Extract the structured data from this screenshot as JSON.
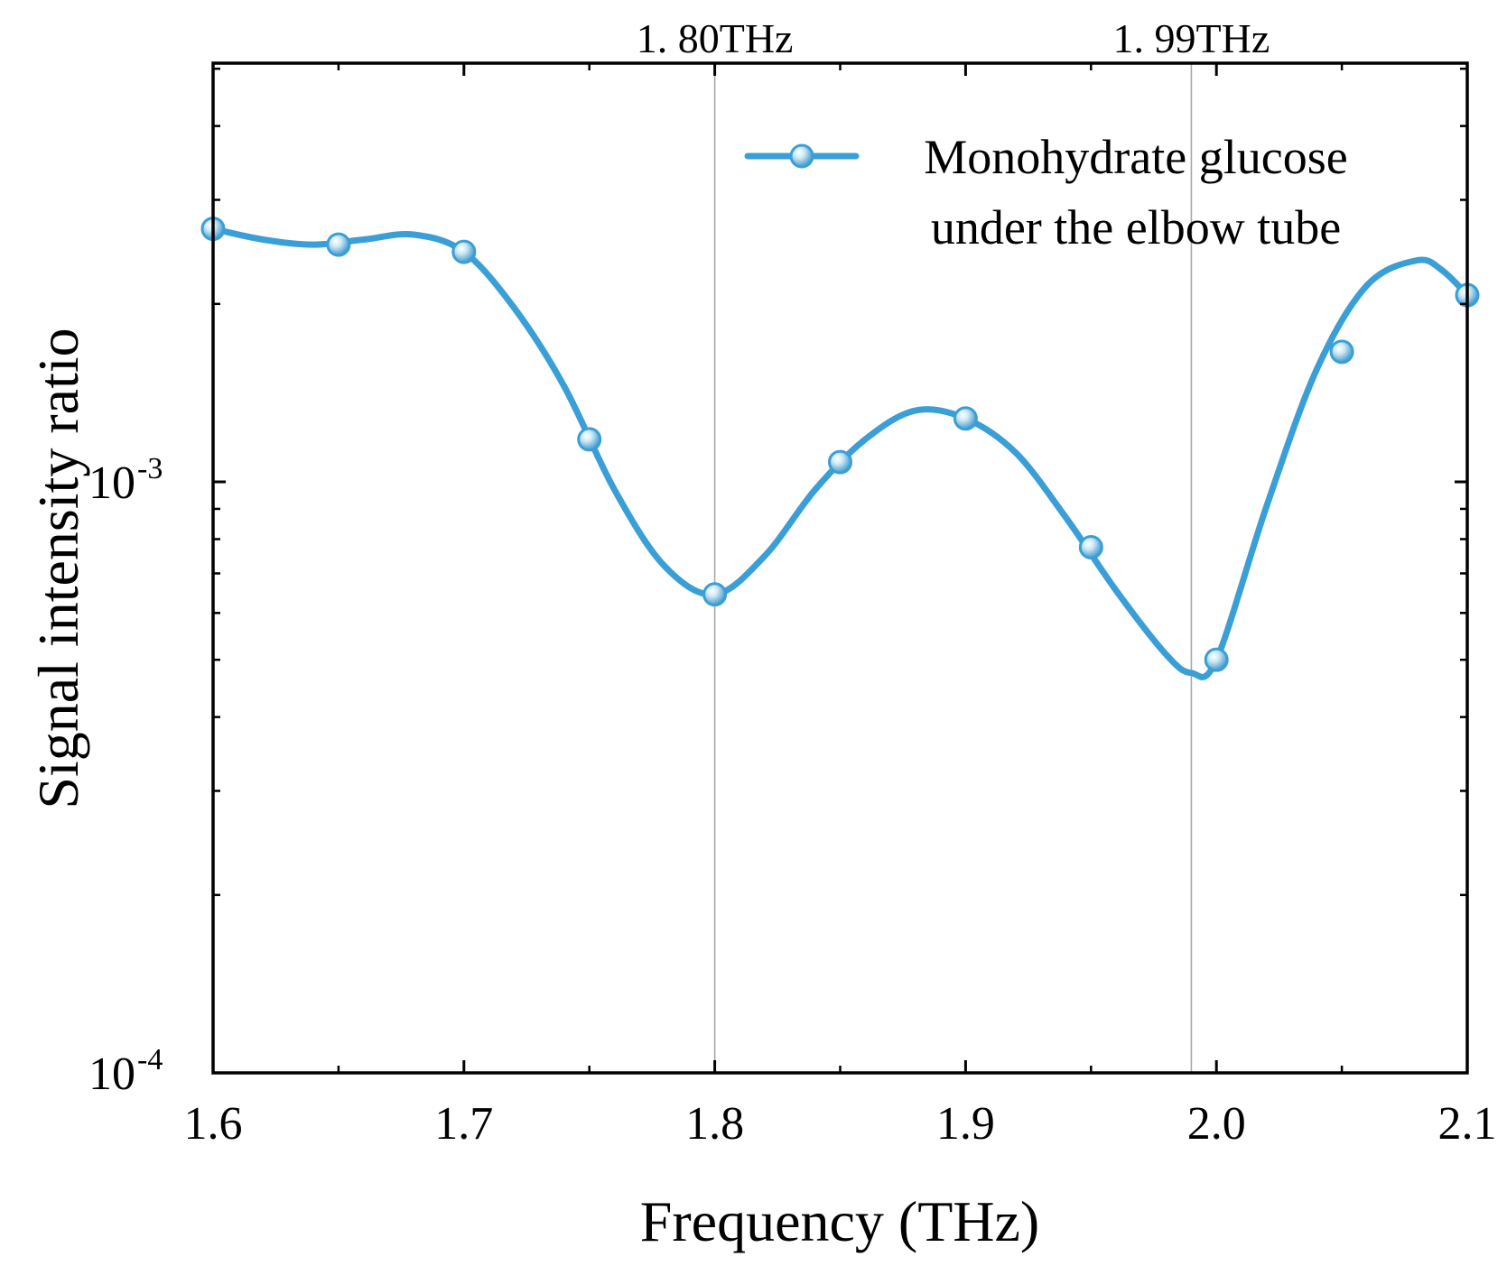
{
  "chart_data": {
    "type": "line",
    "title": "",
    "xlabel": "Frequency (THz)",
    "ylabel": "Signal intensity ratio",
    "xlim": [
      1.6,
      2.1
    ],
    "ylim": [
      0.0001,
      0.005
    ],
    "yscale": "log",
    "grid": false,
    "x_ticks": [
      1.6,
      1.7,
      1.8,
      1.9,
      2.0,
      2.1
    ],
    "x_tick_labels": [
      "1.6",
      "1.7",
      "1.8",
      "1.9",
      "2.0",
      "2.1"
    ],
    "y_ticks": [
      {
        "value": 0.0001,
        "base": "10",
        "exp": "-4"
      },
      {
        "value": 0.001,
        "base": "10",
        "exp": "-3"
      }
    ],
    "legend_position": "top-right",
    "series": [
      {
        "name": "Monohydrate glucose under the elbow tube",
        "legend_lines": [
          "Monohydrate glucose",
          "under the elbow tube"
        ],
        "color": "#3a9fd6",
        "x": [
          1.6,
          1.65,
          1.7,
          1.75,
          1.8,
          1.85,
          1.9,
          1.95,
          2.0,
          2.05,
          2.1
        ],
        "y": [
          0.00268,
          0.00252,
          0.00245,
          0.00118,
          0.000645,
          0.00108,
          0.00128,
          0.000775,
          0.0005,
          0.00166,
          0.00207
        ],
        "curve_x": [
          1.6,
          1.62,
          1.64,
          1.66,
          1.68,
          1.7,
          1.72,
          1.74,
          1.76,
          1.78,
          1.8,
          1.82,
          1.84,
          1.86,
          1.88,
          1.9,
          1.92,
          1.94,
          1.96,
          1.98,
          1.99,
          2.0,
          2.02,
          2.04,
          2.06,
          2.08,
          2.09,
          2.1
        ],
        "curve_y": [
          0.00268,
          0.00257,
          0.00252,
          0.00257,
          0.00262,
          0.00245,
          0.00197,
          0.00145,
          0.00097,
          0.00072,
          0.000645,
          0.00075,
          0.00097,
          0.00118,
          0.00132,
          0.00128,
          0.00112,
          0.00087,
          0.000655,
          0.00051,
          0.000475,
          0.0005,
          0.00091,
          0.00155,
          0.00215,
          0.00237,
          0.00228,
          0.00207
        ]
      }
    ],
    "annotations": [
      {
        "x": 1.8,
        "label": "1. 80THz"
      },
      {
        "x": 1.99,
        "label": "1. 99THz"
      }
    ]
  }
}
